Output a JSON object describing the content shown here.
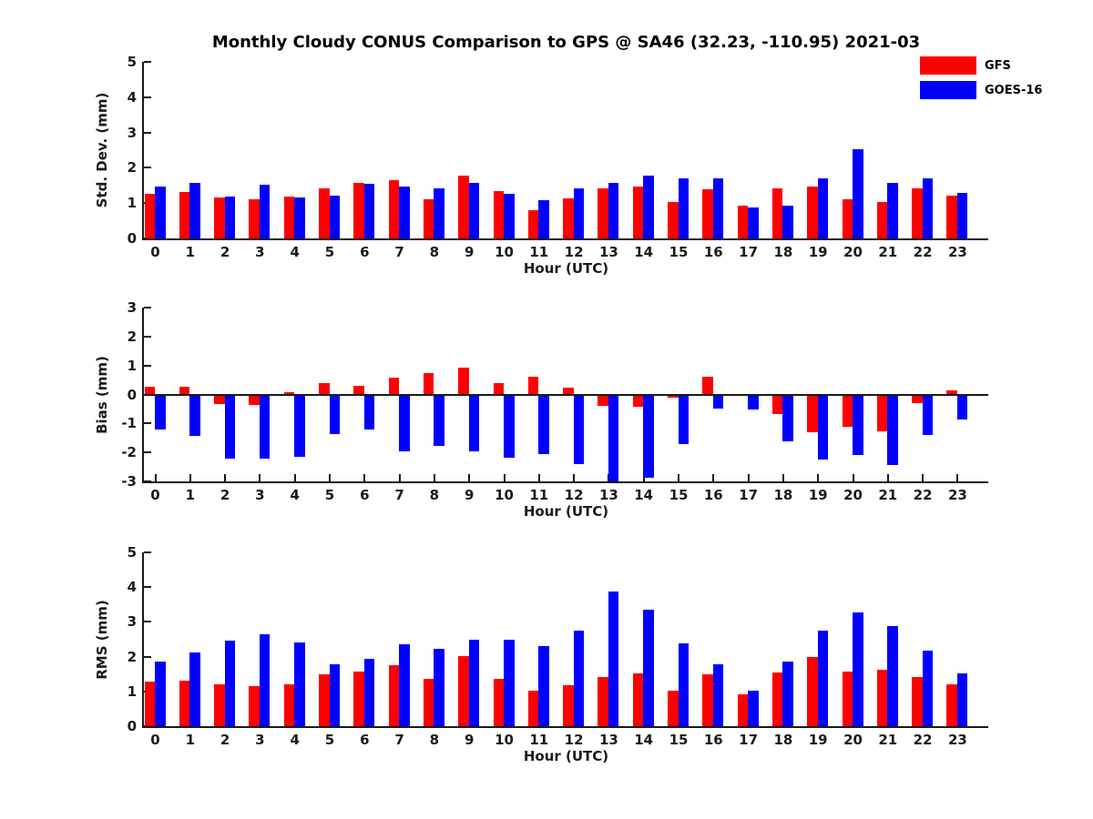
{
  "title": "Monthly Cloudy CONUS Comparison to GPS @ SA46 (32.23, -110.95) 2021-03",
  "colors": {
    "gfs": "#ff0000",
    "goes16": "#0000ff",
    "axis": "#1a1a1a"
  },
  "legend": [
    {
      "label": "GFS",
      "color": "#ff0000"
    },
    {
      "label": "GOES-16",
      "color": "#0000ff"
    }
  ],
  "chart_data": [
    {
      "type": "bar",
      "title": "Std. Dev. panel",
      "ylabel": "Std. Dev. (mm)",
      "xlabel": "Hour (UTC)",
      "ylim": [
        0,
        5
      ],
      "yticks": [
        0,
        1,
        2,
        3,
        4,
        5
      ],
      "grid": false,
      "legend_position": "top-right",
      "categories": [
        "0",
        "1",
        "2",
        "3",
        "4",
        "5",
        "6",
        "7",
        "8",
        "9",
        "10",
        "11",
        "12",
        "13",
        "14",
        "15",
        "16",
        "17",
        "18",
        "19",
        "20",
        "21",
        "22",
        "23"
      ],
      "series": [
        {
          "name": "GFS",
          "color": "#ff0000",
          "values": [
            1.27,
            1.32,
            1.15,
            1.1,
            1.18,
            1.43,
            1.58,
            1.64,
            1.12,
            1.79,
            1.33,
            0.79,
            1.13,
            1.41,
            1.48,
            1.03,
            1.38,
            0.92,
            1.43,
            1.48,
            1.12,
            1.02,
            1.41,
            1.22
          ]
        },
        {
          "name": "GOES-16",
          "color": "#0000ff",
          "values": [
            1.48,
            1.58,
            1.19,
            1.53,
            1.16,
            1.21,
            1.55,
            1.46,
            1.42,
            1.57,
            1.26,
            1.07,
            1.43,
            1.57,
            1.77,
            1.69,
            1.71,
            0.88,
            0.92,
            1.7,
            2.53,
            1.58,
            1.69,
            1.28
          ]
        }
      ]
    },
    {
      "type": "bar",
      "title": "Bias panel",
      "ylabel": "Bias (mm)",
      "xlabel": "Hour (UTC)",
      "ylim": [
        -3,
        3
      ],
      "yticks": [
        -3,
        -2,
        -1,
        0,
        1,
        2,
        3
      ],
      "grid": false,
      "categories": [
        "0",
        "1",
        "2",
        "3",
        "4",
        "5",
        "6",
        "7",
        "8",
        "9",
        "10",
        "11",
        "12",
        "13",
        "14",
        "15",
        "16",
        "17",
        "18",
        "19",
        "20",
        "21",
        "22",
        "23"
      ],
      "series": [
        {
          "name": "GFS",
          "color": "#ff0000",
          "values": [
            0.28,
            0.28,
            -0.33,
            -0.37,
            0.07,
            0.39,
            0.29,
            0.57,
            0.74,
            0.93,
            0.4,
            0.62,
            0.23,
            -0.4,
            -0.43,
            -0.1,
            0.6,
            -0.03,
            -0.68,
            -1.3,
            -1.12,
            -1.27,
            -0.31,
            0.15
          ]
        },
        {
          "name": "GOES-16",
          "color": "#0000ff",
          "values": [
            -1.2,
            -1.43,
            -2.22,
            -2.22,
            -2.15,
            -1.38,
            -1.22,
            -1.95,
            -1.76,
            -1.95,
            -2.18,
            -2.07,
            -2.4,
            -3.05,
            -2.88,
            -1.72,
            -0.5,
            -0.52,
            -1.63,
            -2.25,
            -2.09,
            -2.42,
            -1.4,
            -0.85
          ]
        }
      ]
    },
    {
      "type": "bar",
      "title": "RMS panel",
      "ylabel": "RMS (mm)",
      "xlabel": "Hour (UTC)",
      "ylim": [
        0,
        5
      ],
      "yticks": [
        0,
        1,
        2,
        3,
        4,
        5
      ],
      "grid": false,
      "categories": [
        "0",
        "1",
        "2",
        "3",
        "4",
        "5",
        "6",
        "7",
        "8",
        "9",
        "10",
        "11",
        "12",
        "13",
        "14",
        "15",
        "16",
        "17",
        "18",
        "19",
        "20",
        "21",
        "22",
        "23"
      ],
      "series": [
        {
          "name": "GFS",
          "color": "#ff0000",
          "values": [
            1.28,
            1.32,
            1.2,
            1.15,
            1.2,
            1.48,
            1.58,
            1.75,
            1.35,
            2.02,
            1.37,
            1.02,
            1.17,
            1.42,
            1.52,
            1.03,
            1.5,
            0.91,
            1.54,
            2.0,
            1.57,
            1.63,
            1.42,
            1.2
          ]
        },
        {
          "name": "GOES-16",
          "color": "#0000ff",
          "values": [
            1.87,
            2.12,
            2.46,
            2.64,
            2.42,
            1.78,
            1.95,
            2.36,
            2.23,
            2.5,
            2.49,
            2.3,
            2.74,
            3.87,
            3.36,
            2.38,
            1.77,
            1.03,
            1.85,
            2.74,
            3.26,
            2.88,
            2.17,
            1.51
          ]
        }
      ]
    }
  ]
}
